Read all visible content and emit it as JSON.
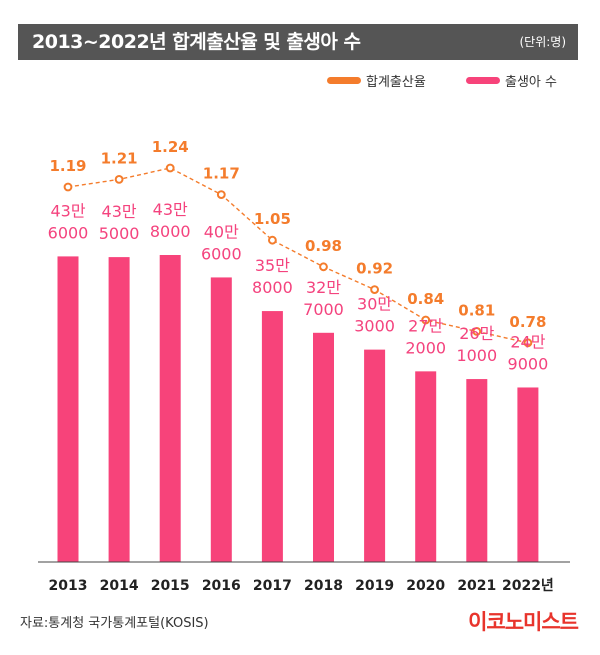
{
  "header": {
    "title": "2013~2022년 합계출산율 및 출생아 수",
    "unit": "(단위:명)"
  },
  "legend": {
    "tfr_label": "합계출산율",
    "births_label": "출생아 수"
  },
  "colors": {
    "title_bg": "#555555",
    "bar": "#f7437a",
    "line": "#f47c2c",
    "birth_label": "#f4437e",
    "logo": "#e8342c"
  },
  "footer": {
    "source": "자료:통계청 국가통계포털(KOSIS)",
    "logo": "이코노미스트"
  },
  "chart_data": {
    "type": "bar",
    "categories": [
      "2013",
      "2014",
      "2015",
      "2016",
      "2017",
      "2018",
      "2019",
      "2020",
      "2021",
      "2022년"
    ],
    "series": [
      {
        "name": "출생아 수",
        "type": "bar",
        "values": [
          436000,
          435000,
          438000,
          406000,
          358000,
          327000,
          303000,
          272000,
          261000,
          249000
        ],
        "labels": [
          [
            "43만",
            "6000"
          ],
          [
            "43만",
            "5000"
          ],
          [
            "43만",
            "8000"
          ],
          [
            "40만",
            "6000"
          ],
          [
            "35만",
            "8000"
          ],
          [
            "32만",
            "7000"
          ],
          [
            "30만",
            "3000"
          ],
          [
            "27만",
            "2000"
          ],
          [
            "26만",
            "1000"
          ],
          [
            "24만",
            "9000"
          ]
        ]
      },
      {
        "name": "합계출산율",
        "type": "line",
        "values": [
          1.19,
          1.21,
          1.24,
          1.17,
          1.05,
          0.98,
          0.92,
          0.84,
          0.81,
          0.78
        ],
        "labels": [
          "1.19",
          "1.21",
          "1.24",
          "1.17",
          "1.05",
          "0.98",
          "0.92",
          "0.84",
          "0.81",
          "0.78"
        ]
      }
    ],
    "legend_position": "top-right",
    "grid": false
  }
}
